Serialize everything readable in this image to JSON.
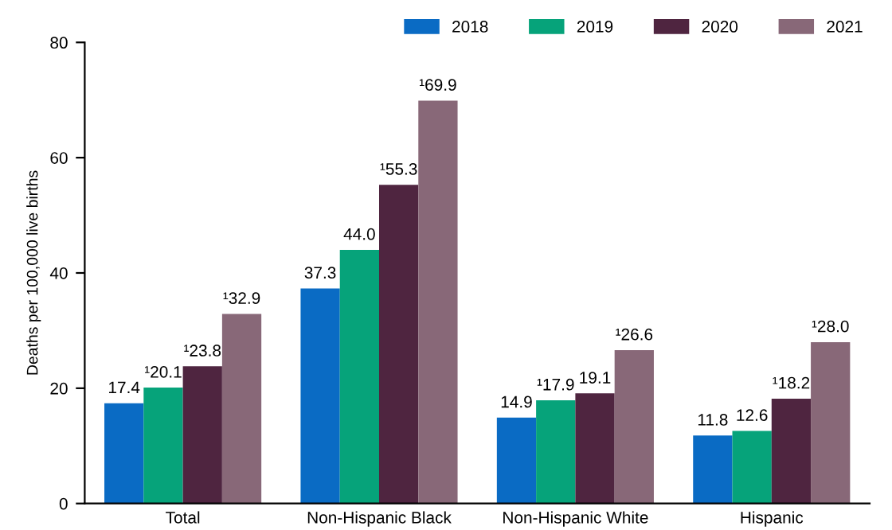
{
  "chart_data": {
    "type": "bar",
    "ylabel": "Deaths per 100,000 live births",
    "categories": [
      "Total",
      "Non-Hispanic Black",
      "Non-Hispanic White",
      "Hispanic"
    ],
    "series": [
      {
        "name": "2018",
        "color": "#0a6bc4",
        "values": [
          17.4,
          37.3,
          14.9,
          11.8
        ],
        "value_labels": [
          "17.4",
          "37.3",
          "14.9",
          "11.8"
        ]
      },
      {
        "name": "2019",
        "color": "#06a37a",
        "values": [
          20.1,
          44.0,
          17.9,
          12.6
        ],
        "value_labels": [
          "¹20.1",
          "44.0",
          "¹17.9",
          "12.6"
        ]
      },
      {
        "name": "2020",
        "color": "#4f2540",
        "values": [
          23.8,
          55.3,
          19.1,
          18.2
        ],
        "value_labels": [
          "¹23.8",
          "¹55.3",
          "19.1",
          "¹18.2"
        ]
      },
      {
        "name": "2021",
        "color": "#886878",
        "values": [
          32.9,
          69.9,
          26.6,
          28.0
        ],
        "value_labels": [
          "¹32.9",
          "¹69.9",
          "¹26.6",
          "¹28.0"
        ]
      }
    ],
    "ylim": [
      0,
      80
    ],
    "yticks": [
      0,
      20,
      40,
      60,
      80
    ],
    "grid": false,
    "legend": "top right"
  }
}
